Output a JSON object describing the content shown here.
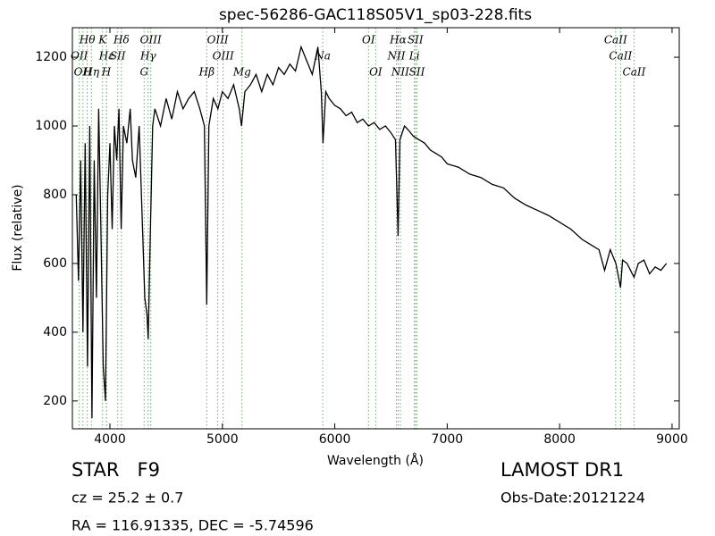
{
  "chart_data": {
    "type": "line",
    "title": "spec-56286-GAC118S05V1_sp03-228.fits",
    "xlabel": "Wavelength (Å)",
    "ylabel": "Flux (relative)",
    "xlim": [
      3666,
      9064
    ],
    "ylim": [
      119,
      1286
    ],
    "xticks": [
      4000,
      5000,
      6000,
      7000,
      8000,
      9000
    ],
    "yticks": [
      200,
      400,
      600,
      800,
      1000,
      1200
    ],
    "x": [
      3700,
      3720,
      3740,
      3760,
      3780,
      3800,
      3820,
      3840,
      3860,
      3880,
      3900,
      3920,
      3940,
      3960,
      3980,
      4000,
      4020,
      4040,
      4060,
      4080,
      4100,
      4120,
      4150,
      4180,
      4200,
      4230,
      4260,
      4290,
      4310,
      4330,
      4340,
      4360,
      4380,
      4400,
      4450,
      4500,
      4550,
      4600,
      4650,
      4700,
      4750,
      4800,
      4840,
      4861,
      4880,
      4920,
      4960,
      5000,
      5050,
      5100,
      5150,
      5170,
      5200,
      5250,
      5300,
      5350,
      5400,
      5450,
      5500,
      5550,
      5600,
      5650,
      5700,
      5750,
      5800,
      5850,
      5880,
      5895,
      5920,
      5950,
      6000,
      6050,
      6100,
      6150,
      6200,
      6250,
      6300,
      6350,
      6400,
      6450,
      6500,
      6540,
      6563,
      6580,
      6620,
      6650,
      6700,
      6750,
      6800,
      6850,
      6900,
      6950,
      7000,
      7100,
      7200,
      7300,
      7400,
      7500,
      7600,
      7700,
      7800,
      7900,
      8000,
      8100,
      8200,
      8300,
      8350,
      8400,
      8450,
      8500,
      8542,
      8560,
      8600,
      8662,
      8700,
      8750,
      8800,
      8850,
      8900,
      8950
    ],
    "series": [
      {
        "name": "spectrum",
        "color": "#000000",
        "values": [
          800,
          550,
          900,
          400,
          950,
          300,
          1000,
          150,
          900,
          500,
          1050,
          700,
          300,
          200,
          800,
          950,
          700,
          1000,
          900,
          1050,
          700,
          1000,
          950,
          1050,
          900,
          850,
          1000,
          700,
          500,
          450,
          380,
          700,
          1000,
          1050,
          1000,
          1080,
          1020,
          1100,
          1050,
          1080,
          1100,
          1050,
          1000,
          480,
          1000,
          1080,
          1050,
          1100,
          1080,
          1120,
          1050,
          1000,
          1100,
          1120,
          1150,
          1100,
          1150,
          1120,
          1170,
          1150,
          1180,
          1160,
          1230,
          1190,
          1150,
          1230,
          1100,
          950,
          1100,
          1080,
          1060,
          1050,
          1030,
          1040,
          1010,
          1020,
          1000,
          1010,
          990,
          1000,
          980,
          960,
          680,
          960,
          1000,
          990,
          970,
          960,
          950,
          930,
          920,
          910,
          890,
          880,
          860,
          850,
          830,
          820,
          790,
          770,
          755,
          740,
          720,
          700,
          670,
          650,
          640,
          580,
          640,
          600,
          530,
          610,
          600,
          560,
          600,
          610,
          570,
          590,
          580,
          600
        ]
      }
    ],
    "line_color": "#55bb55",
    "annotations": [
      [
        {
          "label": "Hθ",
          "x": 3798
        },
        {
          "label": "K",
          "x": 3934
        },
        {
          "label": "Hδ",
          "x": 4102
        },
        {
          "label": "OIII",
          "x": 4363
        },
        {
          "label": "OIII",
          "x": 4959
        },
        {
          "label": "OI",
          "x": 6300
        },
        {
          "label": "Hα",
          "x": 6563
        },
        {
          "label": "SII",
          "x": 6717
        },
        {
          "label": "CaII",
          "x": 8498
        }
      ],
      [
        {
          "label": "OII",
          "x": 3727
        },
        {
          "label": "Hε",
          "x": 3970
        },
        {
          "label": "SII",
          "x": 4069
        },
        {
          "label": "Hγ",
          "x": 4340
        },
        {
          "label": "OIII",
          "x": 5007
        },
        {
          "label": "Na",
          "x": 5893
        },
        {
          "label": "NII",
          "x": 6548
        },
        {
          "label": "Li",
          "x": 6708
        },
        {
          "label": "CaII",
          "x": 8542
        }
      ],
      [
        {
          "label": "OH",
          "x": 3760
        },
        {
          "label": "Hη",
          "x": 3835
        },
        {
          "label": "H",
          "x": 3968
        },
        {
          "label": "G",
          "x": 4304
        },
        {
          "label": "Hβ",
          "x": 4861
        },
        {
          "label": "Mg",
          "x": 5175
        },
        {
          "label": "OI",
          "x": 6364
        },
        {
          "label": "NII",
          "x": 6583
        },
        {
          "label": "SII",
          "x": 6731
        },
        {
          "label": "CaII",
          "x": 8662
        }
      ]
    ]
  },
  "footer": {
    "object": "STAR   F9",
    "cz": "cz = 25.2 ± 0.7",
    "coords": "RA = 116.91335, DEC = -5.74596",
    "survey": "LAMOST DR1",
    "date": "Obs-Date:20121224"
  }
}
